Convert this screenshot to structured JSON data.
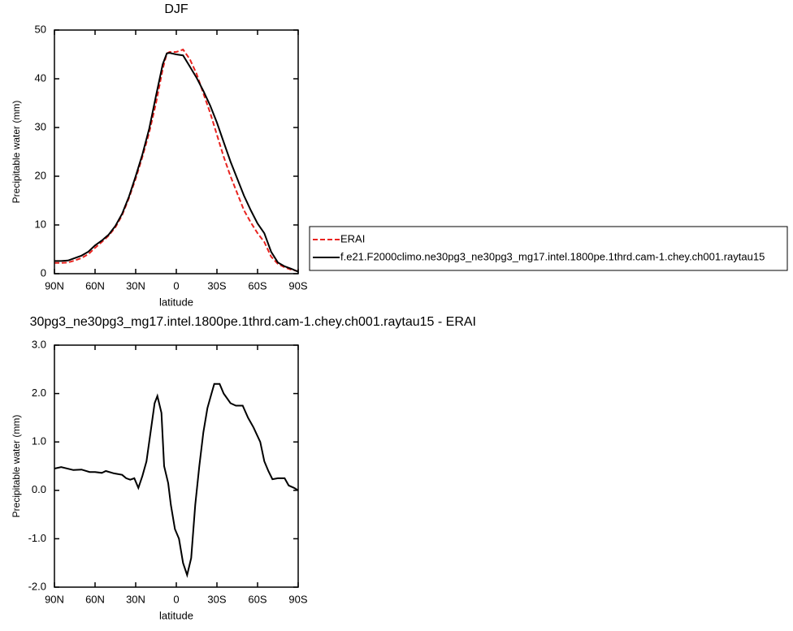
{
  "chart_data": [
    {
      "type": "line",
      "title": "DJF",
      "x_label": "latitude",
      "y_label": "Precipitable water (mm)",
      "x": [
        90,
        85,
        80,
        75,
        70,
        65,
        60,
        55,
        50,
        45,
        40,
        35,
        30,
        25,
        20,
        15,
        10,
        7,
        5,
        0,
        -5,
        -10,
        -15,
        -20,
        -25,
        -30,
        -35,
        -40,
        -45,
        -50,
        -55,
        -60,
        -65,
        -70,
        -75,
        -80,
        -85,
        -90
      ],
      "series": [
        {
          "name": "ERAI",
          "color": "#e8231f",
          "dash": true,
          "values": [
            2.2,
            2.2,
            2.3,
            2.7,
            3.2,
            4.0,
            5.3,
            6.5,
            7.8,
            9.5,
            12,
            15.5,
            19.5,
            24,
            29,
            35,
            42,
            45.2,
            45.5,
            45.5,
            46,
            44,
            41,
            37,
            33,
            28.5,
            24,
            20,
            16.5,
            13,
            10.5,
            8.3,
            6.5,
            3.5,
            2,
            1.3,
            0.8,
            0.5
          ]
        },
        {
          "name": "f.e21.F2000climo.ne30pg3_ne30pg3_mg17.intel.1800pe.1thrd.cam-1.chey.ch001.raytau15",
          "color": "#000000",
          "dash": false,
          "values": [
            2.6,
            2.6,
            2.7,
            3.2,
            3.7,
            4.5,
            5.8,
            6.8,
            8.0,
            9.8,
            12.3,
            15.8,
            20,
            24.5,
            29.8,
            36.5,
            43,
            45.2,
            45.3,
            45,
            44.8,
            42.5,
            40.2,
            37.5,
            34.5,
            31,
            27,
            23,
            19.5,
            16,
            13,
            10.3,
            8.3,
            4.5,
            2.3,
            1.5,
            1.0,
            0.4
          ]
        }
      ],
      "xlim": [
        90,
        -90
      ],
      "xticks": [
        {
          "value": 90,
          "label": "90N"
        },
        {
          "value": 60,
          "label": "60N"
        },
        {
          "value": 30,
          "label": "30N"
        },
        0,
        {
          "value": -30,
          "label": "30S"
        },
        {
          "value": -60,
          "label": "60S"
        },
        {
          "value": -90,
          "label": "90S"
        }
      ],
      "ylim": [
        0,
        50
      ],
      "yticks": [
        0,
        10,
        20,
        30,
        40,
        50
      ]
    },
    {
      "type": "line",
      "title": "30pg3_ne30pg3_mg17.intel.1800pe.1thrd.cam-1.chey.ch001.raytau15 - ERAI",
      "x_label": "latitude",
      "y_label": "Precipitable water (mm)",
      "x": [
        90,
        85,
        76,
        70,
        64,
        60,
        55,
        52,
        46,
        40,
        37,
        34,
        31,
        28,
        25,
        22,
        19,
        16,
        14,
        11,
        9,
        6,
        4,
        1,
        -2,
        -5,
        -8,
        -11,
        -14,
        -17,
        -20,
        -23,
        -26,
        -28,
        -32,
        -35,
        -40,
        -44,
        -49,
        -53,
        -57,
        -62,
        -65,
        -68,
        -71,
        -75,
        -80,
        -83,
        -87,
        -90
      ],
      "values": [
        0.45,
        0.48,
        0.42,
        0.43,
        0.38,
        0.38,
        0.36,
        0.4,
        0.35,
        0.32,
        0.25,
        0.22,
        0.25,
        0.05,
        0.3,
        0.6,
        1.2,
        1.8,
        1.95,
        1.6,
        0.5,
        0.15,
        -0.3,
        -0.8,
        -1.0,
        -1.5,
        -1.75,
        -1.4,
        -0.3,
        0.5,
        1.2,
        1.7,
        2.0,
        2.2,
        2.2,
        2.0,
        1.8,
        1.75,
        1.75,
        1.5,
        1.3,
        1.0,
        0.6,
        0.4,
        0.23,
        0.25,
        0.25,
        0.1,
        0.05,
        0
      ],
      "color": "#000000",
      "xlim": [
        90,
        -90
      ],
      "xticks": [
        {
          "value": 90,
          "label": "90N"
        },
        {
          "value": 60,
          "label": "60N"
        },
        {
          "value": 30,
          "label": "30N"
        },
        0,
        {
          "value": -30,
          "label": "30S"
        },
        {
          "value": -60,
          "label": "60S"
        },
        {
          "value": -90,
          "label": "90S"
        }
      ],
      "ylim": [
        -2,
        3
      ],
      "yticks": [
        {
          "value": 3,
          "label": "3.0"
        },
        {
          "value": 2,
          "label": "2.0"
        },
        {
          "value": 1,
          "label": "1.0"
        },
        {
          "value": 0,
          "label": "0.0"
        },
        {
          "value": -1,
          "label": "-1.0"
        },
        {
          "value": -2,
          "label": "-2.0"
        }
      ]
    }
  ]
}
